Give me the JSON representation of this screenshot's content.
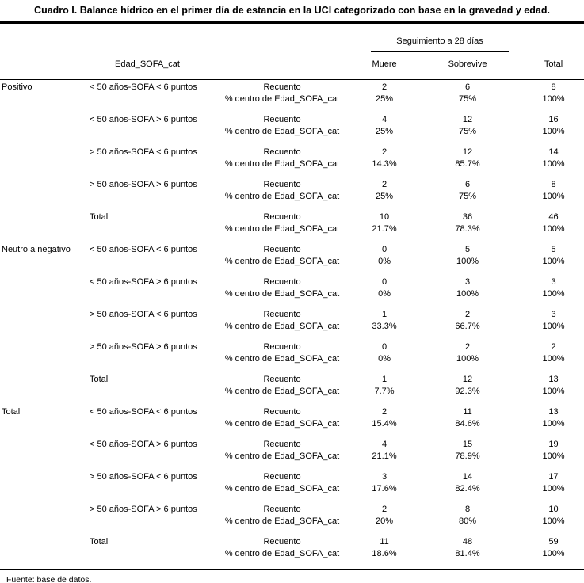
{
  "title": "Cuadro I. Balance hídrico en el primer día de estancia en la UCI categorizado con base en la gravedad y edad.",
  "header": {
    "row_header": "Edad_SOFA_cat",
    "span_header": "Seguimiento a 28 días",
    "col_muere": "Muere",
    "col_sobrevive": "Sobrevive",
    "col_total": "Total"
  },
  "stat_labels": {
    "count": "Recuento",
    "percent": "% dentro de Edad_SOFA_cat"
  },
  "groups": [
    {
      "label": "Positivo",
      "rows": [
        {
          "category": "< 50 años-SOFA < 6 puntos",
          "count": [
            "2",
            "6",
            "8"
          ],
          "percent": [
            "25%",
            "75%",
            "100%"
          ]
        },
        {
          "category": "< 50 años-SOFA > 6 puntos",
          "count": [
            "4",
            "12",
            "16"
          ],
          "percent": [
            "25%",
            "75%",
            "100%"
          ]
        },
        {
          "category": "> 50 años-SOFA < 6 puntos",
          "count": [
            "2",
            "12",
            "14"
          ],
          "percent": [
            "14.3%",
            "85.7%",
            "100%"
          ]
        },
        {
          "category": "> 50 años-SOFA > 6 puntos",
          "count": [
            "2",
            "6",
            "8"
          ],
          "percent": [
            "25%",
            "75%",
            "100%"
          ]
        },
        {
          "category": "Total",
          "count": [
            "10",
            "36",
            "46"
          ],
          "percent": [
            "21.7%",
            "78.3%",
            "100%"
          ]
        }
      ]
    },
    {
      "label": "Neutro a negativo",
      "rows": [
        {
          "category": "< 50 años-SOFA < 6 puntos",
          "count": [
            "0",
            "5",
            "5"
          ],
          "percent": [
            "0%",
            "100%",
            "100%"
          ]
        },
        {
          "category": "< 50 años-SOFA > 6 puntos",
          "count": [
            "0",
            "3",
            "3"
          ],
          "percent": [
            "0%",
            "100%",
            "100%"
          ]
        },
        {
          "category": "> 50 años-SOFA < 6 puntos",
          "count": [
            "1",
            "2",
            "3"
          ],
          "percent": [
            "33.3%",
            "66.7%",
            "100%"
          ]
        },
        {
          "category": "> 50 años-SOFA > 6 puntos",
          "count": [
            "0",
            "2",
            "2"
          ],
          "percent": [
            "0%",
            "100%",
            "100%"
          ]
        },
        {
          "category": "Total",
          "count": [
            "1",
            "12",
            "13"
          ],
          "percent": [
            "7.7%",
            "92.3%",
            "100%"
          ]
        }
      ]
    },
    {
      "label": "Total",
      "rows": [
        {
          "category": "< 50 años-SOFA < 6 puntos",
          "count": [
            "2",
            "11",
            "13"
          ],
          "percent": [
            "15.4%",
            "84.6%",
            "100%"
          ]
        },
        {
          "category": "< 50 años-SOFA > 6 puntos",
          "count": [
            "4",
            "15",
            "19"
          ],
          "percent": [
            "21.1%",
            "78.9%",
            "100%"
          ]
        },
        {
          "category": "> 50 años-SOFA < 6 puntos",
          "count": [
            "3",
            "14",
            "17"
          ],
          "percent": [
            "17.6%",
            "82.4%",
            "100%"
          ]
        },
        {
          "category": "> 50 años-SOFA > 6 puntos",
          "count": [
            "2",
            "8",
            "10"
          ],
          "percent": [
            "20%",
            "80%",
            "100%"
          ]
        },
        {
          "category": "Total",
          "count": [
            "11",
            "48",
            "59"
          ],
          "percent": [
            "18.6%",
            "81.4%",
            "100%"
          ]
        }
      ]
    }
  ],
  "footer": "Fuente: base de datos."
}
